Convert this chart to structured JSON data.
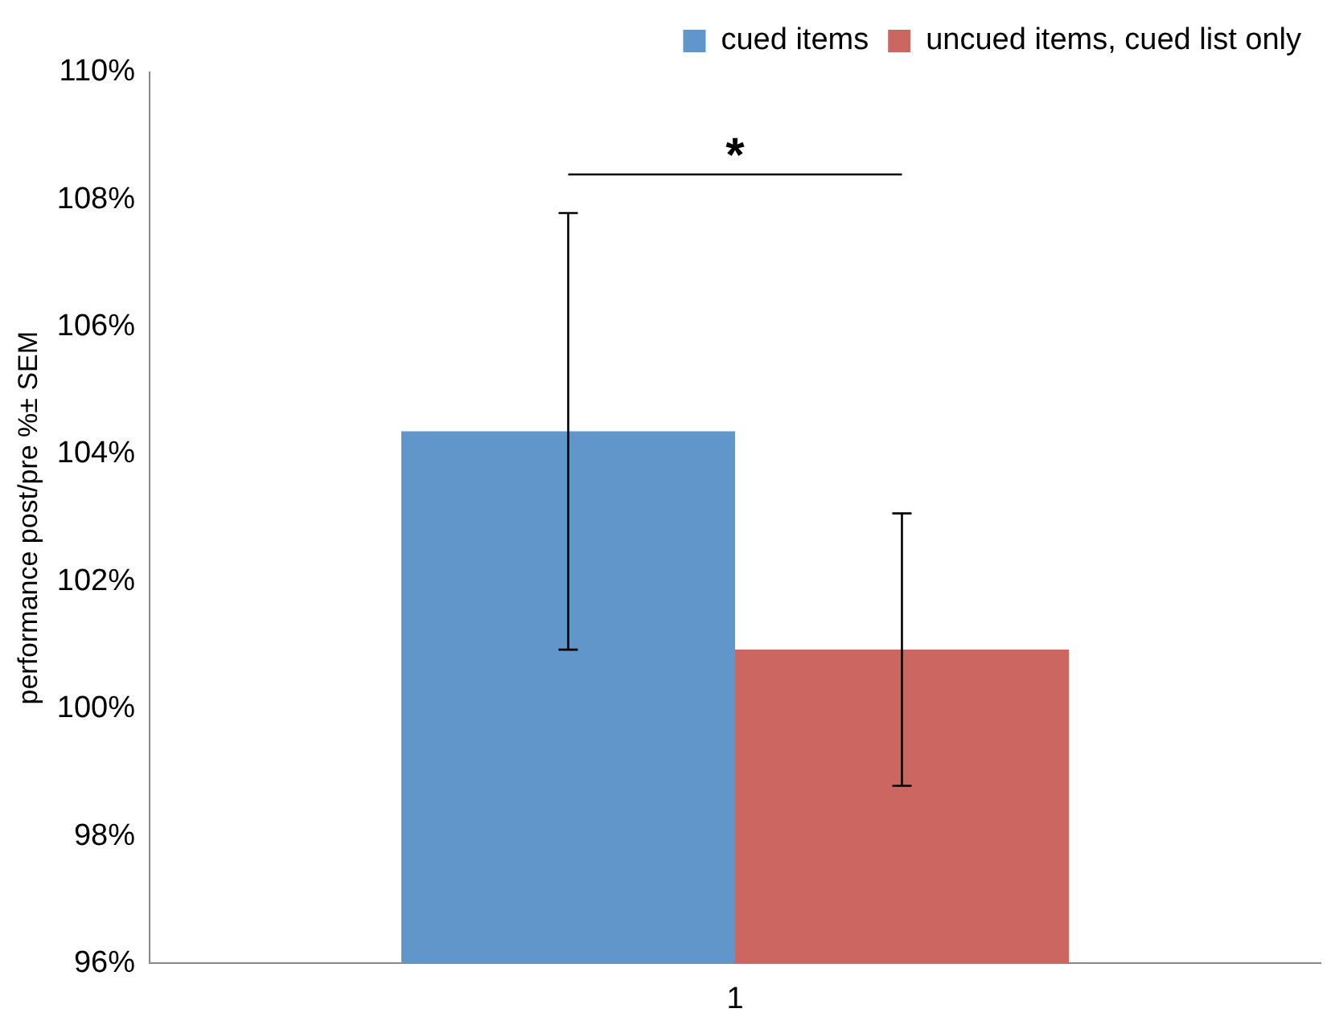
{
  "chart_data": {
    "type": "bar",
    "ylabel": "performance post/pre %± SEM",
    "categories": [
      "1"
    ],
    "series": [
      {
        "name": "cued items",
        "color": "#6096c9",
        "values": [
          104.36
        ],
        "errors": [
          3.43
        ]
      },
      {
        "name": "uncued items, cued list only",
        "color": "#cc6660",
        "values": [
          100.93
        ],
        "errors": [
          2.14
        ]
      }
    ],
    "ylim": [
      96,
      110
    ],
    "yticks": [
      {
        "value": 96,
        "label": "96%"
      },
      {
        "value": 98,
        "label": "98%"
      },
      {
        "value": 100,
        "label": "100%"
      },
      {
        "value": 102,
        "label": "102%"
      },
      {
        "value": 104,
        "label": "104%"
      },
      {
        "value": 106,
        "label": "106%"
      },
      {
        "value": 108,
        "label": "108%"
      },
      {
        "value": 110,
        "label": "110%"
      }
    ],
    "annotations": [
      "*"
    ],
    "grid": false,
    "legend": "top right"
  }
}
